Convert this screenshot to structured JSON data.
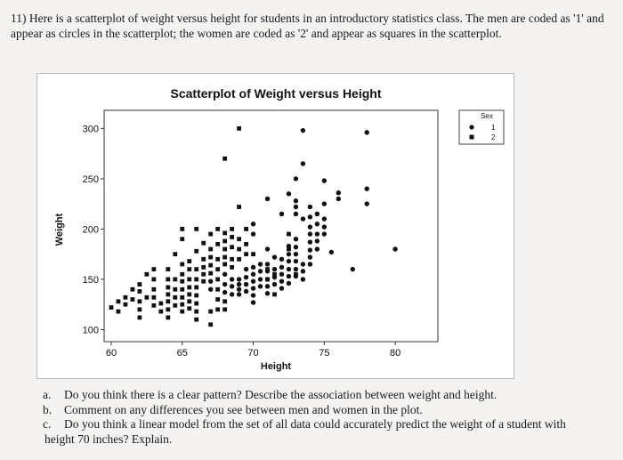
{
  "question": {
    "number": "11)",
    "text": "Here is a scatterplot of weight versus height for students in an introductory statistics class. The men are coded as '1' and appear as circles in the scatterplot; the women are coded as '2' and appear as squares in the scatterplot."
  },
  "subquestions": [
    {
      "label": "a.",
      "text": "Do you think there is a clear pattern? Describe the association between weight and height."
    },
    {
      "label": "b.",
      "text": "Comment on any differences you see between men and women in the plot."
    },
    {
      "label": "c.",
      "text": "Do you think a linear model from the set of all data could accurately predict the weight of a student with",
      "cont": "height 70 inches? Explain."
    }
  ],
  "chart_data": {
    "type": "scatter",
    "title": "Scatterplot of Weight versus Height",
    "xlabel": "Height",
    "ylabel": "Weight",
    "xlim": [
      59.5,
      83
    ],
    "ylim": [
      88,
      318
    ],
    "xticks": [
      60,
      65,
      70,
      75,
      80
    ],
    "yticks": [
      100,
      150,
      200,
      250,
      300
    ],
    "grid": false,
    "legend": {
      "title": "Sex",
      "placement": "top-right",
      "entries": [
        {
          "label": "1",
          "marker": "circle"
        },
        {
          "label": "2",
          "marker": "square"
        }
      ]
    },
    "series": [
      {
        "name": "1",
        "marker": "circle",
        "points": [
          [
            67,
            148
          ],
          [
            67,
            140
          ],
          [
            68,
            155
          ],
          [
            68,
            145
          ],
          [
            68,
            137
          ],
          [
            68.5,
            150
          ],
          [
            68.5,
            143
          ],
          [
            68.5,
            135
          ],
          [
            69,
            150
          ],
          [
            69,
            145
          ],
          [
            69,
            140
          ],
          [
            69,
            135
          ],
          [
            69.5,
            160
          ],
          [
            69.5,
            152
          ],
          [
            69.5,
            145
          ],
          [
            69.5,
            138
          ],
          [
            70,
            205
          ],
          [
            70,
            195
          ],
          [
            70,
            162
          ],
          [
            70,
            155
          ],
          [
            70,
            148
          ],
          [
            70,
            141
          ],
          [
            70,
            134
          ],
          [
            70,
            127
          ],
          [
            70.5,
            165
          ],
          [
            70.5,
            158
          ],
          [
            70.5,
            150
          ],
          [
            70.5,
            143
          ],
          [
            71,
            230
          ],
          [
            71,
            180
          ],
          [
            71,
            165
          ],
          [
            71,
            158
          ],
          [
            71,
            150
          ],
          [
            71,
            143
          ],
          [
            71,
            136
          ],
          [
            71.5,
            172
          ],
          [
            71.5,
            160
          ],
          [
            71.5,
            152
          ],
          [
            71.5,
            145
          ],
          [
            72,
            215
          ],
          [
            72,
            170
          ],
          [
            72,
            162
          ],
          [
            72,
            155
          ],
          [
            72,
            148
          ],
          [
            72,
            141
          ],
          [
            72.5,
            235
          ],
          [
            72.5,
            183
          ],
          [
            72.5,
            175
          ],
          [
            72.5,
            168
          ],
          [
            72.5,
            160
          ],
          [
            72.5,
            153
          ],
          [
            72.5,
            146
          ],
          [
            73,
            250
          ],
          [
            73,
            228
          ],
          [
            73,
            222
          ],
          [
            73,
            215
          ],
          [
            73,
            190
          ],
          [
            73,
            182
          ],
          [
            73,
            175
          ],
          [
            73,
            168
          ],
          [
            73,
            160
          ],
          [
            73,
            153
          ],
          [
            73.5,
            298
          ],
          [
            73.5,
            265
          ],
          [
            73.5,
            210
          ],
          [
            73.5,
            165
          ],
          [
            73.5,
            158
          ],
          [
            73.5,
            150
          ],
          [
            74,
            222
          ],
          [
            74,
            212
          ],
          [
            74,
            202
          ],
          [
            74,
            195
          ],
          [
            74,
            187
          ],
          [
            74,
            179
          ],
          [
            74,
            172
          ],
          [
            74,
            165
          ],
          [
            74.5,
            215
          ],
          [
            74.5,
            205
          ],
          [
            74.5,
            195
          ],
          [
            74.5,
            188
          ],
          [
            74.5,
            180
          ],
          [
            75,
            248
          ],
          [
            75,
            225
          ],
          [
            75,
            210
          ],
          [
            75,
            202
          ],
          [
            75,
            195
          ],
          [
            75.5,
            177
          ],
          [
            76,
            230
          ],
          [
            76,
            236
          ],
          [
            77,
            160
          ],
          [
            78,
            296
          ],
          [
            78,
            240
          ],
          [
            78,
            225
          ],
          [
            80,
            180
          ]
        ]
      },
      {
        "name": "2",
        "marker": "square",
        "points": [
          [
            60,
            122
          ],
          [
            60.5,
            128
          ],
          [
            60.5,
            118
          ],
          [
            61,
            132
          ],
          [
            61,
            125
          ],
          [
            61.5,
            140
          ],
          [
            61.5,
            130
          ],
          [
            62,
            145
          ],
          [
            62,
            138
          ],
          [
            62,
            128
          ],
          [
            62,
            120
          ],
          [
            62,
            112
          ],
          [
            62.5,
            155
          ],
          [
            62.5,
            132
          ],
          [
            63,
            160
          ],
          [
            63,
            150
          ],
          [
            63,
            140
          ],
          [
            63,
            132
          ],
          [
            63,
            124
          ],
          [
            63.5,
            126
          ],
          [
            63.5,
            118
          ],
          [
            64,
            160
          ],
          [
            64,
            150
          ],
          [
            64,
            142
          ],
          [
            64,
            135
          ],
          [
            64,
            128
          ],
          [
            64,
            120
          ],
          [
            64,
            112
          ],
          [
            64.5,
            175
          ],
          [
            64.5,
            150
          ],
          [
            64.5,
            140
          ],
          [
            64.5,
            132
          ],
          [
            64.5,
            124
          ],
          [
            65,
            200
          ],
          [
            65,
            190
          ],
          [
            65,
            165
          ],
          [
            65,
            155
          ],
          [
            65,
            148
          ],
          [
            65,
            140
          ],
          [
            65,
            132
          ],
          [
            65,
            125
          ],
          [
            65,
            118
          ],
          [
            65.5,
            168
          ],
          [
            65.5,
            160
          ],
          [
            65.5,
            150
          ],
          [
            65.5,
            142
          ],
          [
            65.5,
            135
          ],
          [
            65.5,
            128
          ],
          [
            65.5,
            121
          ],
          [
            66,
            200
          ],
          [
            66,
            178
          ],
          [
            66,
            160
          ],
          [
            66,
            150
          ],
          [
            66,
            142
          ],
          [
            66,
            134
          ],
          [
            66,
            126
          ],
          [
            66,
            118
          ],
          [
            66,
            110
          ],
          [
            66.5,
            186
          ],
          [
            66.5,
            170
          ],
          [
            66.5,
            162
          ],
          [
            66.5,
            155
          ],
          [
            66.5,
            148
          ],
          [
            67,
            195
          ],
          [
            67,
            180
          ],
          [
            67,
            172
          ],
          [
            67,
            164
          ],
          [
            67,
            156
          ],
          [
            67,
            118
          ],
          [
            67,
            105
          ],
          [
            67.5,
            200
          ],
          [
            67.5,
            185
          ],
          [
            67.5,
            170
          ],
          [
            67.5,
            160
          ],
          [
            67.5,
            150
          ],
          [
            67.5,
            140
          ],
          [
            67.5,
            130
          ],
          [
            67.5,
            120
          ],
          [
            68,
            270
          ],
          [
            68,
            196
          ],
          [
            68,
            188
          ],
          [
            68,
            180
          ],
          [
            68,
            172
          ],
          [
            68,
            165
          ],
          [
            68,
            128
          ],
          [
            68,
            120
          ],
          [
            68.5,
            200
          ],
          [
            68.5,
            192
          ],
          [
            68.5,
            182
          ],
          [
            68.5,
            170
          ],
          [
            68.5,
            162
          ],
          [
            69,
            300
          ],
          [
            69,
            222
          ],
          [
            69,
            190
          ],
          [
            69,
            180
          ],
          [
            69,
            170
          ],
          [
            69.5,
            200
          ],
          [
            69.5,
            185
          ],
          [
            69.5,
            175
          ],
          [
            70,
            175
          ],
          [
            71,
            160
          ],
          [
            71,
            150
          ],
          [
            71.5,
            155
          ],
          [
            71.5,
            135
          ],
          [
            72.5,
            195
          ],
          [
            72.5,
            180
          ],
          [
            73,
            155
          ]
        ]
      }
    ]
  }
}
